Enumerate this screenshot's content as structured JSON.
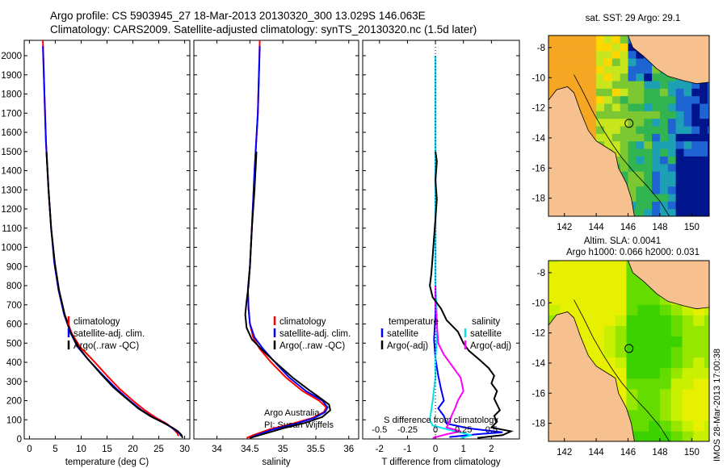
{
  "title_line1": "Argo profile: CS 5903945_27 18-Mar-2013 20130320_300 13.029S 146.063E",
  "title_line2": "Climatology: CARS2009. Satellite-adjusted climatology: synTS_20130320.nc (1.5d later)",
  "sidebar_text": "IMOS 28-Mar-2013 17:00:38",
  "colors": {
    "climatology": "#ff0000",
    "satellite": "#0000ff",
    "argo": "#000000",
    "sal_satellite": "#00e5ee",
    "sal_argo": "#ff00ff",
    "land": "#f7c08f"
  },
  "chart_data": [
    {
      "type": "line",
      "id": "temp",
      "xlabel": "temperature (deg C)",
      "xlim": [
        -1,
        31
      ],
      "ylim": [
        2080,
        0
      ],
      "xticks": [
        "0",
        "5",
        "10",
        "15",
        "20",
        "25",
        "30"
      ],
      "yticks": [
        "0",
        "100",
        "200",
        "300",
        "400",
        "500",
        "600",
        "700",
        "800",
        "900",
        "1000",
        "1100",
        "1200",
        "1300",
        "1400",
        "1500",
        "1600",
        "1700",
        "1800",
        "1900",
        "2000"
      ],
      "legend": [
        "climatology",
        "satellite-adj. clim.",
        "Argo(..raw -QC)"
      ],
      "series": [
        {
          "name": "climatology",
          "color": "#ff0000",
          "points": [
            [
              28.8,
              15
            ],
            [
              28.6,
              30
            ],
            [
              27.9,
              50
            ],
            [
              26.5,
              80
            ],
            [
              24.5,
              110
            ],
            [
              22.3,
              150
            ],
            [
              20,
              200
            ],
            [
              17.5,
              260
            ],
            [
              15,
              330
            ],
            [
              12.3,
              410
            ],
            [
              9.8,
              480
            ],
            [
              8.2,
              550
            ],
            [
              6.8,
              650
            ],
            [
              5.7,
              780
            ],
            [
              4.9,
              920
            ],
            [
              4.2,
              1100
            ],
            [
              3.7,
              1300
            ],
            [
              3.2,
              1550
            ],
            [
              2.9,
              1800
            ],
            [
              2.6,
              2080
            ]
          ]
        },
        {
          "name": "satellite-adj. clim.",
          "color": "#0000ff",
          "points": [
            [
              29.3,
              15
            ],
            [
              29,
              30
            ],
            [
              28,
              50
            ],
            [
              26.3,
              80
            ],
            [
              24,
              110
            ],
            [
              21.7,
              150
            ],
            [
              19.4,
              200
            ],
            [
              16.9,
              260
            ],
            [
              14.3,
              330
            ],
            [
              11.5,
              410
            ],
            [
              9.3,
              480
            ],
            [
              8,
              550
            ],
            [
              6.7,
              650
            ],
            [
              5.6,
              780
            ],
            [
              4.8,
              920
            ],
            [
              4.2,
              1100
            ],
            [
              3.7,
              1300
            ],
            [
              3.2,
              1550
            ],
            [
              2.9,
              1800
            ],
            [
              2.6,
              2050
            ]
          ]
        },
        {
          "name": "Argo(..raw -QC)",
          "color": "#000000",
          "points": [
            [
              29.6,
              5
            ],
            [
              29.4,
              20
            ],
            [
              28.7,
              40
            ],
            [
              27.6,
              60
            ],
            [
              25.5,
              90
            ],
            [
              23.3,
              120
            ],
            [
              21,
              160
            ],
            [
              18.8,
              210
            ],
            [
              16.2,
              270
            ],
            [
              13.8,
              340
            ],
            [
              11.2,
              420
            ],
            [
              9.2,
              490
            ],
            [
              7.9,
              560
            ],
            [
              6.8,
              650
            ],
            [
              5.7,
              780
            ],
            [
              4.9,
              920
            ],
            [
              4.2,
              1100
            ],
            [
              3.7,
              1300
            ],
            [
              3.3,
              1500
            ]
          ]
        }
      ]
    },
    {
      "type": "line",
      "id": "sal",
      "xlabel": "salinity",
      "xlim": [
        33.65,
        36.15
      ],
      "ylim": [
        2080,
        0
      ],
      "xticks": [
        "34",
        "34.5",
        "35",
        "35.5",
        "36"
      ],
      "legend": [
        "climatology",
        "satellite-adj. clim.",
        "Argo(..raw -QC)"
      ],
      "annotation": [
        "Argo Australia",
        "PI: Susan Wijffels"
      ],
      "series": [
        {
          "name": "climatology",
          "color": "#ff0000",
          "points": [
            [
              34.45,
              5
            ],
            [
              34.55,
              20
            ],
            [
              34.8,
              50
            ],
            [
              35.15,
              80
            ],
            [
              35.45,
              110
            ],
            [
              35.62,
              140
            ],
            [
              35.66,
              165
            ],
            [
              35.55,
              200
            ],
            [
              35.3,
              250
            ],
            [
              35.05,
              320
            ],
            [
              34.82,
              400
            ],
            [
              34.65,
              470
            ],
            [
              34.55,
              530
            ],
            [
              34.5,
              600
            ],
            [
              34.48,
              680
            ],
            [
              34.47,
              780
            ],
            [
              34.5,
              900
            ],
            [
              34.53,
              1100
            ],
            [
              34.57,
              1400
            ],
            [
              34.62,
              1700
            ],
            [
              34.65,
              2080
            ]
          ]
        },
        {
          "name": "satellite-adj. clim.",
          "color": "#0000ff",
          "points": [
            [
              34.5,
              5
            ],
            [
              34.6,
              20
            ],
            [
              34.85,
              50
            ],
            [
              35.2,
              80
            ],
            [
              35.48,
              110
            ],
            [
              35.64,
              140
            ],
            [
              35.68,
              165
            ],
            [
              35.6,
              200
            ],
            [
              35.35,
              250
            ],
            [
              35.1,
              320
            ],
            [
              34.88,
              400
            ],
            [
              34.7,
              470
            ],
            [
              34.57,
              530
            ],
            [
              34.5,
              600
            ],
            [
              34.48,
              680
            ],
            [
              34.47,
              780
            ],
            [
              34.5,
              900
            ],
            [
              34.53,
              1100
            ],
            [
              34.57,
              1400
            ],
            [
              34.62,
              1700
            ],
            [
              34.65,
              2050
            ]
          ]
        },
        {
          "name": "Argo(..raw -QC)",
          "color": "#000000",
          "points": [
            [
              34.5,
              5
            ],
            [
              34.7,
              25
            ],
            [
              35.0,
              55
            ],
            [
              35.35,
              85
            ],
            [
              35.6,
              115
            ],
            [
              35.72,
              150
            ],
            [
              35.7,
              180
            ],
            [
              35.58,
              210
            ],
            [
              35.38,
              260
            ],
            [
              35.15,
              320
            ],
            [
              34.92,
              390
            ],
            [
              34.7,
              460
            ],
            [
              34.53,
              520
            ],
            [
              34.45,
              580
            ],
            [
              34.43,
              650
            ],
            [
              34.45,
              720
            ],
            [
              34.48,
              800
            ],
            [
              34.5,
              900
            ],
            [
              34.53,
              1100
            ],
            [
              34.57,
              1300
            ],
            [
              34.6,
              1500
            ]
          ]
        }
      ]
    },
    {
      "type": "line",
      "id": "diff",
      "xlabel": "T difference from climatology",
      "xlabel_top": "S difference from climatology",
      "xlim": [
        -2.6,
        3
      ],
      "ylim": [
        2080,
        0
      ],
      "xticks": [
        "-2",
        "-1",
        "0",
        "1",
        "2"
      ],
      "xticks_s": [
        "-0.5",
        "-0.25",
        "0",
        "0.25",
        "0.5"
      ],
      "legend_left_title": "temperature",
      "legend_right_title": "salinity",
      "legend_left": [
        "satellite",
        "Argo(-adj)"
      ],
      "legend_right": [
        "satellite",
        "Argo(-adj)"
      ],
      "series": [
        {
          "name": "T satellite",
          "color": "#0000ff",
          "points": [
            [
              0.5,
              10
            ],
            [
              1.5,
              25
            ],
            [
              2.4,
              35
            ],
            [
              1.2,
              55
            ],
            [
              0.4,
              80
            ],
            [
              0.3,
              120
            ],
            [
              0.1,
              160
            ],
            [
              0.3,
              200
            ],
            [
              0.2,
              260
            ],
            [
              0.1,
              330
            ],
            [
              0,
              420
            ],
            [
              -0.05,
              520
            ],
            [
              0,
              650
            ],
            [
              0,
              800
            ],
            [
              0,
              1000
            ],
            [
              0,
              1300
            ],
            [
              0,
              1600
            ],
            [
              0,
              2000
            ]
          ]
        },
        {
          "name": "S satellite",
          "color": "#00e5ee",
          "points": [
            [
              0.9,
              5
            ],
            [
              1.3,
              20
            ],
            [
              0.7,
              40
            ],
            [
              -0.1,
              70
            ],
            [
              -0.2,
              100
            ],
            [
              -0.15,
              150
            ],
            [
              -0.1,
              200
            ],
            [
              -0.05,
              260
            ],
            [
              0,
              320
            ],
            [
              0,
              420
            ],
            [
              0.05,
              520
            ],
            [
              0.05,
              650
            ],
            [
              0,
              800
            ],
            [
              0,
              1000
            ],
            [
              0,
              1300
            ],
            [
              0,
              1600
            ],
            [
              0,
              2000
            ]
          ]
        },
        {
          "name": "S Argo(-adj)",
          "color": "#ff00ff",
          "points": [
            [
              -0.1,
              5
            ],
            [
              0.4,
              25
            ],
            [
              0.9,
              40
            ],
            [
              0.4,
              60
            ],
            [
              0.5,
              90
            ],
            [
              0.6,
              130
            ],
            [
              0.7,
              160
            ],
            [
              0.8,
              200
            ],
            [
              1.0,
              250
            ],
            [
              0.9,
              320
            ],
            [
              0.6,
              380
            ],
            [
              0.3,
              440
            ],
            [
              0.1,
              500
            ],
            [
              0.05,
              600
            ],
            [
              0,
              700
            ],
            [
              0,
              800
            ]
          ]
        },
        {
          "name": "T Argo(-adj)",
          "color": "#000000",
          "points": [
            [
              1.5,
              5
            ],
            [
              2.4,
              20
            ],
            [
              2.7,
              40
            ],
            [
              2.0,
              60
            ],
            [
              2.2,
              90
            ],
            [
              2.1,
              120
            ],
            [
              2.3,
              150
            ],
            [
              2.2,
              180
            ],
            [
              2.1,
              210
            ],
            [
              2.2,
              250
            ],
            [
              2.0,
              290
            ],
            [
              2.1,
              330
            ],
            [
              1.9,
              370
            ],
            [
              1.6,
              410
            ],
            [
              1.2,
              460
            ],
            [
              1.0,
              500
            ],
            [
              0.8,
              560
            ],
            [
              0.4,
              620
            ],
            [
              0.2,
              680
            ],
            [
              -0.1,
              740
            ],
            [
              -0.2,
              800
            ],
            [
              -0.15,
              860
            ],
            [
              -0.1,
              950
            ],
            [
              -0.05,
              1050
            ],
            [
              0,
              1150
            ],
            [
              0.05,
              1250
            ],
            [
              0,
              1350
            ],
            [
              0.05,
              1450
            ],
            [
              0,
              1500
            ]
          ]
        }
      ]
    },
    {
      "type": "heatmap",
      "id": "sst",
      "title": "sat. SST: 29 Argo: 29.1",
      "xlim": [
        141,
        151.1
      ],
      "ylim": [
        -19.2,
        -7.2
      ],
      "xticks": [
        "142",
        "144",
        "146",
        "148",
        "150"
      ],
      "yticks": [
        "-8",
        "-10",
        "-12",
        "-14",
        "-16",
        "-18"
      ],
      "marker": [
        146.06,
        -13.03
      ]
    },
    {
      "type": "heatmap",
      "id": "sla",
      "title_line1": "Altim. SLA: 0.0041",
      "title_line2": "Argo h1000: 0.066 h2000: 0.031",
      "xlim": [
        141,
        151.1
      ],
      "ylim": [
        -19.2,
        -7.2
      ],
      "xticks": [
        "142",
        "144",
        "146",
        "148",
        "150"
      ],
      "yticks": [
        "-8",
        "-10",
        "-12",
        "-14",
        "-16",
        "-18"
      ],
      "marker": [
        146.06,
        -13.03
      ]
    }
  ]
}
